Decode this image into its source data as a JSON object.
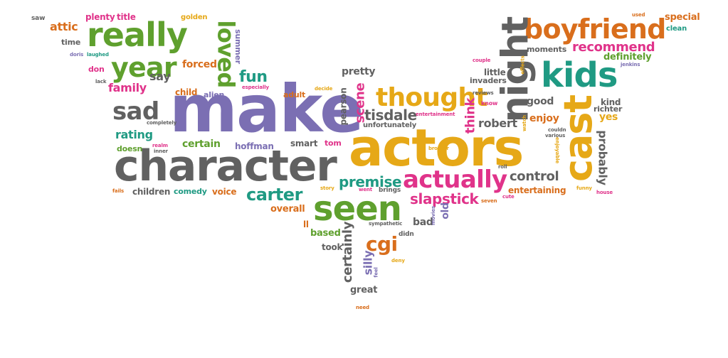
{
  "colors": {
    "purple": "#7b6fb3",
    "orange": "#e6a817",
    "green": "#5fa02e",
    "gray": "#616161",
    "teal": "#1f9a83",
    "pink": "#e0338a",
    "rust": "#d96e1c",
    "background": "#ffffff"
  },
  "words": {
    "make": "make",
    "actors": "actors",
    "character": "character",
    "seen": "seen",
    "really": "really",
    "boyfriend": "boyfriend",
    "kids": "kids",
    "night": "night",
    "cast": "cast",
    "year": "year",
    "thought": "thought",
    "actually": "actually",
    "loved": "loved",
    "sad": "sad",
    "cgi": "cgi",
    "carter": "carter",
    "premise": "premise",
    "recommend": "recommend",
    "slapstick": "slapstick",
    "fun": "fun",
    "say": "say",
    "rating": "rating",
    "tisdale": "tisdale",
    "scene": "scene",
    "control": "control",
    "pretty": "pretty",
    "robert": "robert",
    "certain": "certain",
    "hoffman": "hoffman",
    "family": "family",
    "attic": "attic",
    "forced": "forced",
    "moments": "moments",
    "definitely": "definitely",
    "special": "special",
    "plenty": "plenty",
    "title": "title",
    "time": "time",
    "don": "don",
    "child": "child",
    "alien": "alien",
    "adult": "adult",
    "pearson": "pearson",
    "think": "think",
    "good": "good",
    "kind": "kind",
    "richter": "richter",
    "yes": "yes",
    "enjoy": "enjoy",
    "probably": "probably",
    "entertaining": "entertaining",
    "children": "children",
    "comedy": "comedy",
    "voice": "voice",
    "overall": "overall",
    "based": "based",
    "took": "took",
    "certainly": "certainly",
    "silly": "silly",
    "great": "great",
    "bad": "bad",
    "old": "old",
    "smart": "smart",
    "tom": "tom",
    "little": "little",
    "invaders": "invaders",
    "unfortunately": "unfortunately",
    "doesn": "doesn",
    "ll": "ll",
    "golden": "golden",
    "summer": "summer",
    "saw": "saw",
    "clean": "clean",
    "used": "used",
    "couple": "couple",
    "effects": "effects",
    "jenkins": "jenkins",
    "especially": "especially",
    "decide": "decide",
    "reviews": "reviews",
    "entertainment": "entertainment",
    "know": "know",
    "watch": "watch",
    "couldn": "couldn",
    "various": "various",
    "enjoyable": "enjoyable",
    "brother": "brother",
    "roll": "roll",
    "funny": "funny",
    "house": "house",
    "cute": "cute",
    "seven": "seven",
    "went": "went",
    "brings": "brings",
    "story": "story",
    "sympathetic": "sympathetic",
    "didn": "didn",
    "movies": "movies",
    "feel": "feel",
    "deny": "deny",
    "need": "need",
    "fails": "fails",
    "inner": "inner",
    "realm": "realm",
    "completely": "completely",
    "lack": "lack",
    "laughed": "laughed",
    "doris": "doris"
  }
}
